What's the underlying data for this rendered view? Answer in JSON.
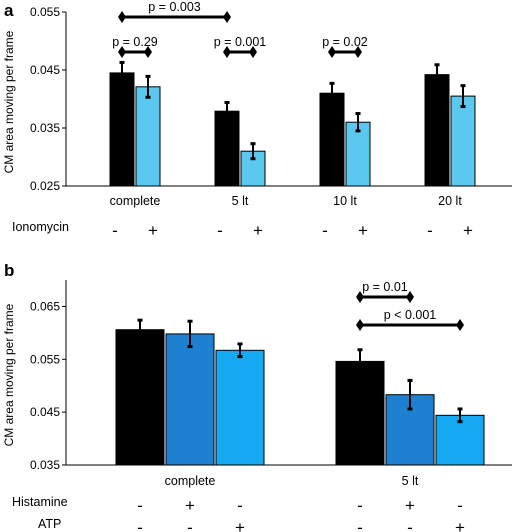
{
  "chart_data": [
    {
      "panel": "a",
      "type": "bar",
      "ylabel": "CM area moving per frame",
      "ylim": [
        0.025,
        0.055
      ],
      "yticks": [
        "0.025",
        "0.035",
        "0.045",
        "0.055"
      ],
      "categories": [
        "complete",
        "5 lt",
        "10 lt",
        "20 lt"
      ],
      "series": [
        {
          "color": "#000000",
          "values": [
            0.0445,
            0.0379,
            0.041,
            0.0442
          ],
          "errors": [
            0.0018,
            0.0015,
            0.0017,
            0.0017
          ]
        },
        {
          "color": "#5BC8F0",
          "values": [
            0.0421,
            0.031,
            0.036,
            0.0405
          ],
          "errors": [
            0.0018,
            0.0013,
            0.0015,
            0.0018
          ]
        }
      ],
      "treatments": [
        {
          "label": "Ionomycin",
          "signs": [
            [
              "-",
              "+"
            ],
            [
              "-",
              "+"
            ],
            [
              "-",
              "+"
            ],
            [
              "-",
              "+"
            ]
          ]
        }
      ],
      "significance": [
        {
          "label": "p = 0.003",
          "from": [
            0,
            0
          ],
          "to": [
            1,
            0
          ]
        },
        {
          "label": "p = 0.29",
          "from": [
            0,
            0
          ],
          "to": [
            0,
            1
          ]
        },
        {
          "label": "p = 0.001",
          "from": [
            1,
            0
          ],
          "to": [
            1,
            1
          ]
        },
        {
          "label": "p = 0.02",
          "from": [
            2,
            0
          ],
          "to": [
            2,
            1
          ]
        }
      ]
    },
    {
      "panel": "b",
      "type": "bar",
      "ylabel": "CM area moving per frame",
      "ylim": [
        0.035,
        0.07
      ],
      "yticks": [
        "0.035",
        "0.045",
        "0.055",
        "0.065"
      ],
      "categories": [
        "complete",
        "5 lt"
      ],
      "series": [
        {
          "color": "#000000",
          "values": [
            0.0606,
            0.0546
          ],
          "errors": [
            0.0018,
            0.0022
          ]
        },
        {
          "color": "#1E80D0",
          "values": [
            0.0598,
            0.0483
          ],
          "errors": [
            0.0024,
            0.0027
          ]
        },
        {
          "color": "#14A9F0",
          "values": [
            0.0567,
            0.0444
          ],
          "errors": [
            0.0012,
            0.0012
          ]
        }
      ],
      "treatments": [
        {
          "label": "Histamine",
          "signs": [
            [
              "-",
              "+",
              "-"
            ],
            [
              "-",
              "+",
              "-"
            ]
          ]
        },
        {
          "label": "ATP",
          "signs": [
            [
              "-",
              "-",
              "+"
            ],
            [
              "-",
              "-",
              "+"
            ]
          ]
        }
      ],
      "significance": [
        {
          "label": "p = 0.01",
          "from": [
            1,
            0
          ],
          "to": [
            1,
            1
          ]
        },
        {
          "label": "p < 0.001",
          "from": [
            1,
            0
          ],
          "to": [
            1,
            2
          ]
        }
      ]
    }
  ]
}
